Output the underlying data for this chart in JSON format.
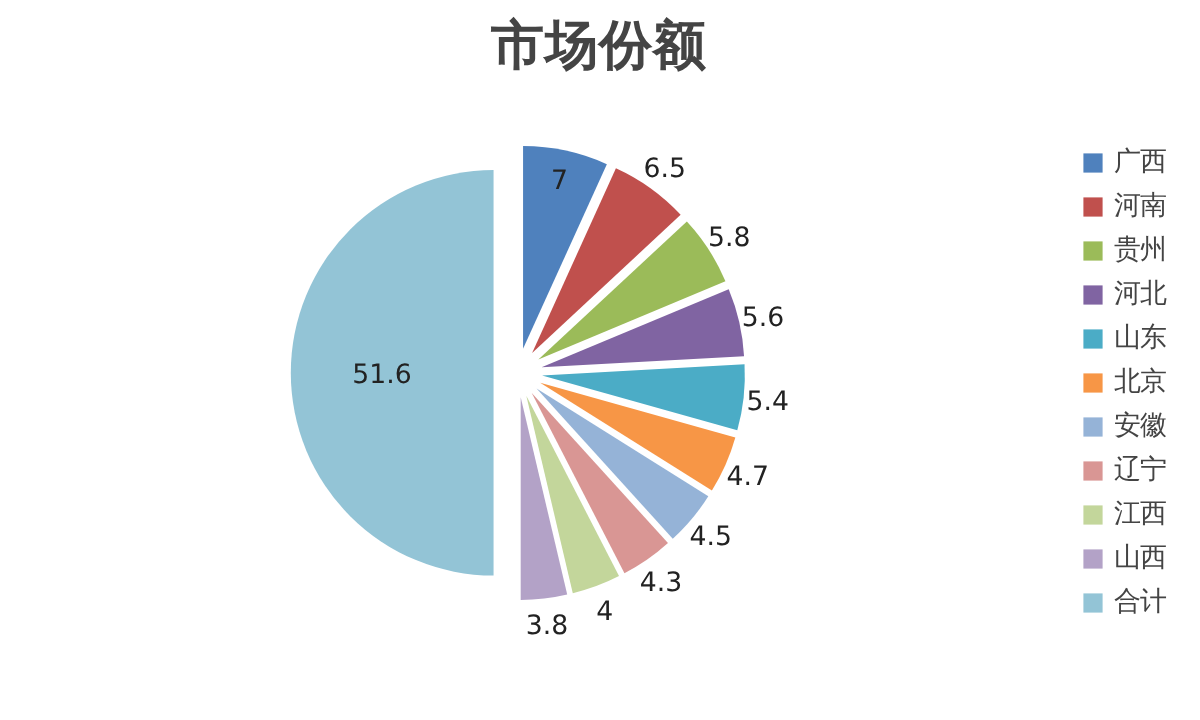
{
  "chart_data": {
    "type": "pie",
    "title": "市场份额",
    "categories": [
      "广西",
      "河南",
      "贵州",
      "河北",
      "山东",
      "北京",
      "安徽",
      "辽宁",
      "江西",
      "山西",
      "合计"
    ],
    "values": [
      7,
      6.5,
      5.8,
      5.6,
      5.4,
      4.7,
      4.5,
      4.3,
      4,
      3.8,
      51.6
    ],
    "colors": [
      "#4f81bd",
      "#c0504d",
      "#9bbb59",
      "#8064a2",
      "#4bacc6",
      "#f79646",
      "#95b3d7",
      "#d99694",
      "#c3d69b",
      "#b3a2c7",
      "#93c4d6"
    ],
    "legend": "right",
    "data_labels": true
  }
}
